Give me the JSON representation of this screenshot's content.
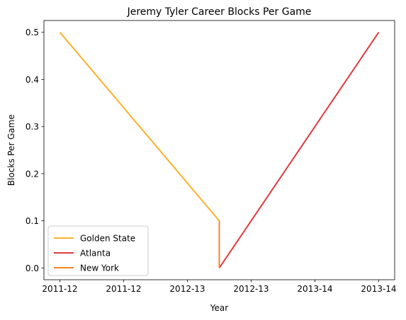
{
  "chart_data": {
    "type": "line",
    "title": "Jeremy Tyler Career Blocks Per Game",
    "xlabel": "Year",
    "ylabel": "Blocks Per Game",
    "x_tick_labels": [
      "2011-12",
      "2011-12",
      "2012-13",
      "2012-13",
      "2013-14",
      "2013-14"
    ],
    "y_ticks": [
      0.0,
      0.1,
      0.2,
      0.3,
      0.4,
      0.5
    ],
    "y_tick_labels": [
      "0.0",
      "0.1",
      "0.2",
      "0.3",
      "0.4",
      "0.5"
    ],
    "xlim": [
      -0.25,
      5.25
    ],
    "ylim": [
      -0.025,
      0.525
    ],
    "grid": false,
    "legend_position": "lower left",
    "series": [
      {
        "name": "Golden State",
        "color": "#fbb12a",
        "points": [
          [
            0,
            0.5
          ],
          [
            2.5,
            0.1
          ]
        ]
      },
      {
        "name": "Atlanta",
        "color": "#e03a3e",
        "points": [
          [
            2.5,
            0.0
          ],
          [
            5,
            0.5
          ]
        ]
      },
      {
        "name": "New York",
        "color": "#f58426",
        "points": [
          [
            2.5,
            0.1
          ],
          [
            2.5,
            0.0
          ]
        ]
      }
    ]
  }
}
